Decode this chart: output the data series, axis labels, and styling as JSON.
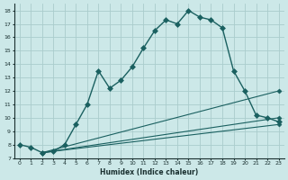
{
  "xlabel": "Humidex (Indice chaleur)",
  "background_color": "#cce8e8",
  "grid_color": "#aacccc",
  "line_color": "#1a6060",
  "xlim": [
    -0.5,
    23.5
  ],
  "ylim": [
    7,
    18.5
  ],
  "xtick_labels": [
    "0",
    "1",
    "2",
    "3",
    "4",
    "5",
    "6",
    "7",
    "8",
    "9",
    "10",
    "11",
    "12",
    "13",
    "14",
    "15",
    "16",
    "17",
    "18",
    "19",
    "20",
    "21",
    "22",
    "23"
  ],
  "yticks": [
    7,
    8,
    9,
    10,
    11,
    12,
    13,
    14,
    15,
    16,
    17,
    18
  ],
  "series": [
    {
      "x": [
        0,
        1,
        2,
        3,
        4,
        5,
        6,
        7,
        8,
        9,
        10,
        11,
        12,
        13,
        14,
        15,
        16,
        17,
        18,
        19,
        20,
        21,
        22,
        23
      ],
      "y": [
        8.0,
        7.8,
        7.4,
        7.5,
        8.0,
        9.5,
        11.0,
        13.5,
        12.2,
        12.8,
        13.8,
        15.2,
        16.5,
        17.3,
        17.0,
        18.0,
        17.5,
        17.3,
        16.7,
        13.5,
        12.0,
        10.2,
        10.0,
        9.7
      ],
      "marker": "D",
      "markersize": 3,
      "linestyle": "-",
      "linewidth": 1.0
    },
    {
      "x": [
        2,
        23
      ],
      "y": [
        7.4,
        12.0
      ],
      "marker": "D",
      "markersize": 2.5,
      "linestyle": "-",
      "linewidth": 0.8
    },
    {
      "x": [
        2,
        23
      ],
      "y": [
        7.4,
        10.0
      ],
      "marker": "D",
      "markersize": 2.5,
      "linestyle": "-",
      "linewidth": 0.8
    },
    {
      "x": [
        2,
        23
      ],
      "y": [
        7.4,
        9.5
      ],
      "marker": "D",
      "markersize": 2.5,
      "linestyle": "-",
      "linewidth": 0.8
    }
  ]
}
